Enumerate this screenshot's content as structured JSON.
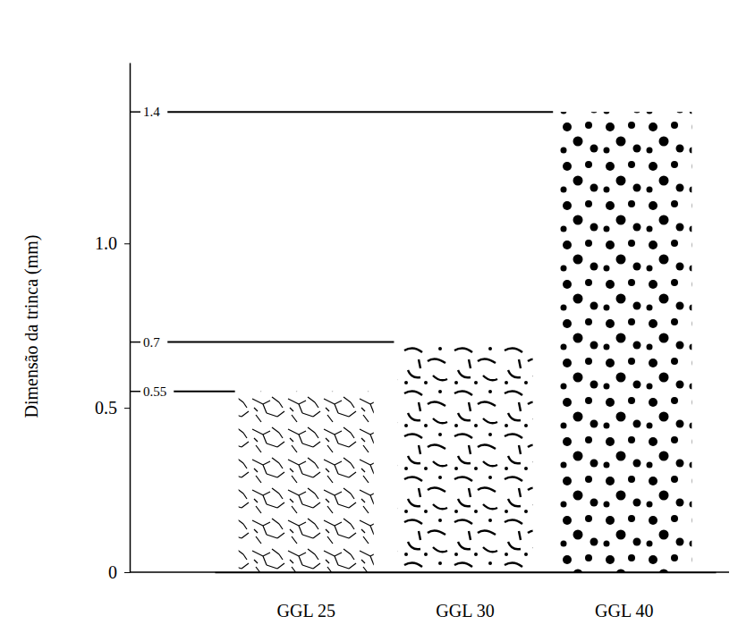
{
  "chart_data": {
    "type": "bar",
    "categories": [
      "GGL 25",
      "GGL 30",
      "GGL 40"
    ],
    "values": [
      0.55,
      0.7,
      1.4
    ],
    "data_labels": true,
    "ylabel": "Dimensão da trinca (mm)",
    "ylim": [
      0,
      1.55
    ],
    "yticks": [
      0,
      0.5,
      {
        "value": 1,
        "label": "1.0"
      }
    ],
    "color": "#000000"
  }
}
